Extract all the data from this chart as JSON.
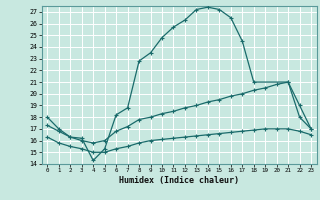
{
  "xlabel": "Humidex (Indice chaleur)",
  "xlim": [
    -0.5,
    23.5
  ],
  "ylim": [
    14,
    27.5
  ],
  "yticks": [
    14,
    15,
    16,
    17,
    18,
    19,
    20,
    21,
    22,
    23,
    24,
    25,
    26,
    27
  ],
  "xticks": [
    0,
    1,
    2,
    3,
    4,
    5,
    6,
    7,
    8,
    9,
    10,
    11,
    12,
    13,
    14,
    15,
    16,
    17,
    18,
    19,
    20,
    21,
    22,
    23
  ],
  "bg_color": "#c8e8e0",
  "grid_color": "#ffffff",
  "line_color": "#1a6b6b",
  "curve1_x": [
    0,
    1,
    2,
    3,
    4,
    5,
    6,
    7,
    8,
    9,
    10,
    11,
    12,
    13,
    14,
    15,
    16,
    17,
    18,
    21,
    22,
    23
  ],
  "curve1_y": [
    18.0,
    17.0,
    16.3,
    16.2,
    14.3,
    15.3,
    18.2,
    18.8,
    22.8,
    23.5,
    24.8,
    25.7,
    26.3,
    27.2,
    27.4,
    27.2,
    26.5,
    24.5,
    21.0,
    21.0,
    19.0,
    17.0
  ],
  "curve2_x": [
    0,
    1,
    2,
    3,
    4,
    5,
    6,
    7,
    8,
    9,
    10,
    11,
    12,
    13,
    14,
    15,
    16,
    17,
    18,
    19,
    20,
    21,
    22,
    23
  ],
  "curve2_y": [
    17.3,
    16.8,
    16.3,
    16.0,
    15.8,
    16.0,
    16.8,
    17.2,
    17.8,
    18.0,
    18.3,
    18.5,
    18.8,
    19.0,
    19.3,
    19.5,
    19.8,
    20.0,
    20.3,
    20.5,
    20.8,
    21.0,
    18.0,
    17.0
  ],
  "curve3_x": [
    0,
    1,
    2,
    3,
    4,
    5,
    6,
    7,
    8,
    9,
    10,
    11,
    12,
    13,
    14,
    15,
    16,
    17,
    18,
    19,
    20,
    21,
    22,
    23
  ],
  "curve3_y": [
    16.3,
    15.8,
    15.5,
    15.3,
    15.0,
    15.0,
    15.3,
    15.5,
    15.8,
    16.0,
    16.1,
    16.2,
    16.3,
    16.4,
    16.5,
    16.6,
    16.7,
    16.8,
    16.9,
    17.0,
    17.0,
    17.0,
    16.8,
    16.5
  ]
}
